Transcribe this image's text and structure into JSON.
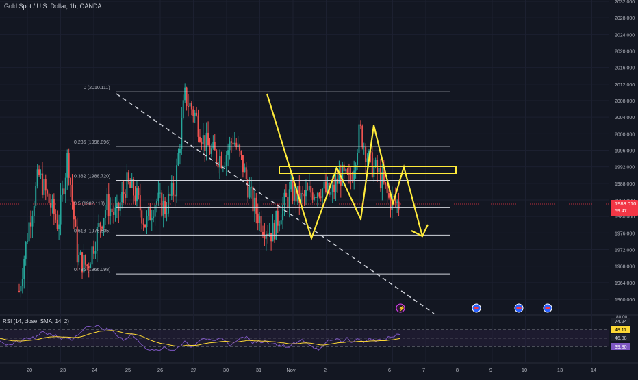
{
  "header": {
    "symbol": "Gold Spot / U.S. Dollar, 1h, OANDA"
  },
  "price_axis": {
    "ticks": [
      "2032.000",
      "2028.000",
      "2024.000",
      "2020.000",
      "2016.000",
      "2012.000",
      "2008.000",
      "2004.000",
      "2000.000",
      "1996.000",
      "1992.000",
      "1988.000",
      "1984.000",
      "1980.000",
      "1976.000",
      "1972.000",
      "1968.000",
      "1964.000",
      "1960.000"
    ],
    "last_price": "1983.010",
    "countdown": "59:47"
  },
  "time_axis": {
    "labels": [
      "20",
      "23",
      "24",
      "25",
      "26",
      "27",
      "30",
      "31",
      "Nov",
      "2",
      "6",
      "7",
      "8",
      "9",
      "10",
      "13",
      "14"
    ]
  },
  "rsi": {
    "title": "RSI (14, close, SMA, 14, 2)",
    "values": [
      "74.24",
      "48.11",
      "46.88",
      "39.80"
    ],
    "axis": [
      "80.00"
    ]
  },
  "fib_levels": [
    {
      "label": "0 (2010.111)",
      "value": 2010.111
    },
    {
      "label": "0.236 (1996.896)",
      "value": 1996.896
    },
    {
      "label": "0.382 (1988.720)",
      "value": 1988.72
    },
    {
      "label": "0.5 (1982.113)",
      "value": 1982.113
    },
    {
      "label": "0.618 (1975.505)",
      "value": 1975.505
    },
    {
      "label": "0.786 (1966.098)",
      "value": 1966.098
    }
  ],
  "colors": {
    "up": "#26a69a",
    "down": "#ef5350",
    "drawing": "#ffeb3b",
    "fib": "#d1d4dc",
    "rsi": "#7e57c2",
    "rsi_ma": "#fdd835",
    "price_label": "#f23645"
  },
  "events": [
    "flag-icon",
    "flag-icon",
    "flag-icon",
    "lightning-icon"
  ],
  "chart_data": {
    "type": "candlestick",
    "title": "Gold Spot / U.S. Dollar, 1h, OANDA",
    "ylim": [
      1958,
      2034
    ],
    "x": [
      "20",
      "23",
      "24",
      "25",
      "26",
      "27",
      "30",
      "31",
      "Nov",
      "2",
      "6"
    ],
    "close_series": [
      1962,
      1978,
      1990,
      1984,
      1978,
      1995,
      1970,
      1968,
      1976,
      1983,
      1980,
      1988,
      1985,
      1978,
      1984,
      1982,
      1987,
      2009,
      2005,
      1998,
      1995,
      1994,
      1999,
      1992,
      1983,
      1978,
      1976,
      1982,
      1986,
      1984,
      1986,
      1987,
      1985,
      1990,
      1988,
      2001,
      1993,
      1990,
      1984,
      1983
    ],
    "last_close": 1983.01
  }
}
